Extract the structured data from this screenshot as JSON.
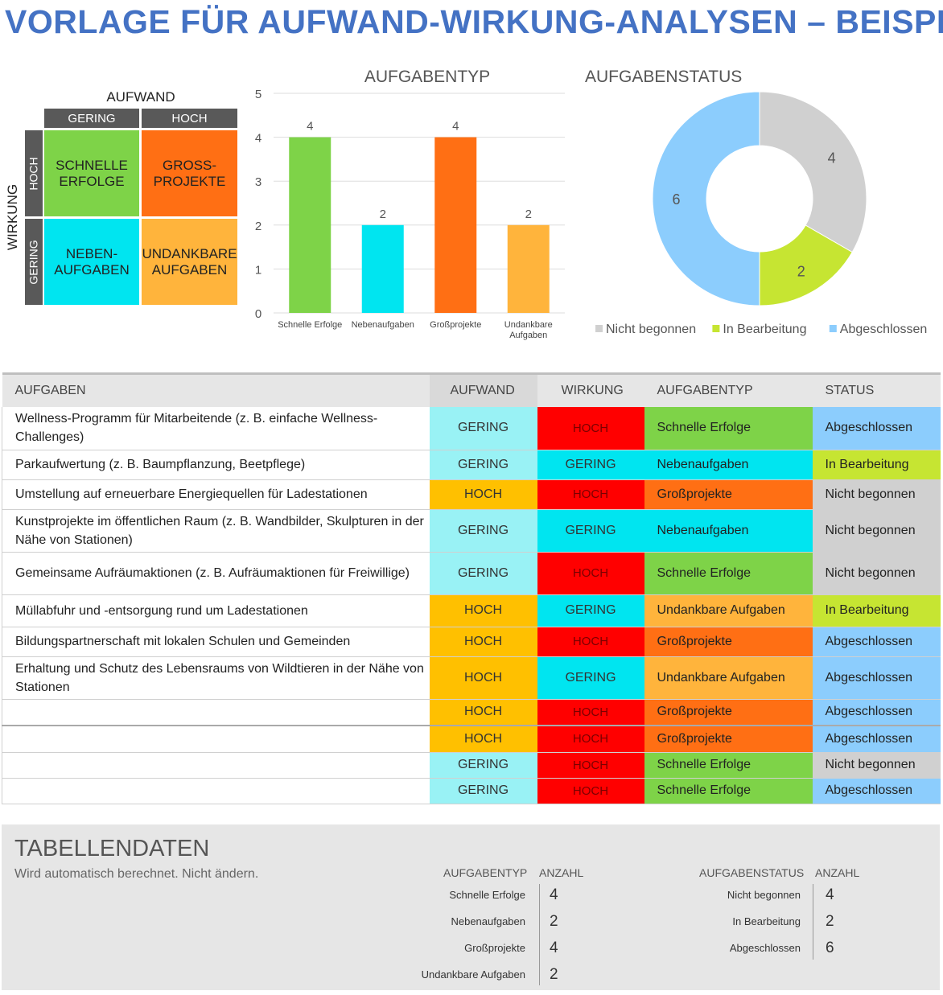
{
  "title": "VORLAGE FÜR AUFWAND-WIRKUNG-ANALYSEN – BEISPIEL",
  "matrix": {
    "x_label": "AUFWAND",
    "y_label": "WIRKUNG",
    "col_low": "GERING",
    "col_high": "HOCH",
    "row_high": "HOCH",
    "row_low": "GERING",
    "q_quick": [
      "SCHNELLE",
      "ERFOLGE"
    ],
    "q_major": [
      "GROSS-",
      "PROJEKTE"
    ],
    "q_fill": [
      "NEBEN-",
      "AUFGABEN"
    ],
    "q_thankless": [
      "UNDANKBARE",
      "AUFGABEN"
    ]
  },
  "colors": {
    "green": "#7ed348",
    "cyan": "#00e5f0",
    "light_cyan": "#99f2f5",
    "orange": "#ff6f14",
    "amber": "#ffc000",
    "light_orange": "#ffb43c",
    "red": "#ff0000",
    "gray": "#d0d0d0",
    "lime": "#c6e532",
    "blue": "#8ccdfd",
    "title": "#4472c4"
  },
  "chart_data": [
    {
      "type": "bar",
      "title": "AUFGABENTYP",
      "categories": [
        "Schnelle Erfolge",
        "Nebenaufgaben",
        "Großprojekte",
        "Undankbare Aufgaben"
      ],
      "category_lines": [
        [
          "Schnelle Erfolge"
        ],
        [
          "Nebenaufgaben"
        ],
        [
          "Großprojekte"
        ],
        [
          "Undankbare",
          "Aufgaben"
        ]
      ],
      "values": [
        4,
        2,
        4,
        2
      ],
      "colors": [
        "#7ed348",
        "#00e5f0",
        "#ff6f14",
        "#ffb43c"
      ],
      "ylim": [
        0,
        5
      ],
      "yticks": [
        0,
        1,
        2,
        3,
        4,
        5
      ],
      "grid": true
    },
    {
      "type": "pie",
      "title": "AUFGABENSTATUS",
      "labels": [
        "Nicht begonnen",
        "In Bearbeitung",
        "Abgeschlossen"
      ],
      "values": [
        4,
        2,
        6
      ],
      "colors": [
        "#d0d0d0",
        "#c6e532",
        "#8ccdfd"
      ],
      "donut": true,
      "legend": "bottom"
    }
  ],
  "table": {
    "headers": [
      "AUFGABEN",
      "AUFWAND",
      "WIRKUNG",
      "AUFGABENTYP",
      "STATUS"
    ],
    "rows": [
      {
        "task": "Wellness-Programm für Mitarbeitende (z. B. einfache Wellness-Challenges)",
        "effort": "GERING",
        "impact": "HOCH",
        "type": "Schnelle Erfolge",
        "status": "Abgeschlossen"
      },
      {
        "task": "Parkaufwertung (z. B. Baumpflanzung, Beetpflege)",
        "effort": "GERING",
        "impact": "GERING",
        "type": "Nebenaufgaben",
        "status": "In Bearbeitung"
      },
      {
        "task": "Umstellung auf erneuerbare Energiequellen für Ladestationen",
        "effort": "HOCH",
        "impact": "HOCH",
        "type": "Großprojekte",
        "status": "Nicht begonnen"
      },
      {
        "task": "Kunstprojekte im öffentlichen Raum (z. B. Wandbilder, Skulpturen in der Nähe von Stationen)",
        "effort": "GERING",
        "impact": "GERING",
        "type": "Nebenaufgaben",
        "status": "Nicht begonnen"
      },
      {
        "task": "Gemeinsame Aufräumaktionen (z. B. Aufräumaktionen für Freiwillige)",
        "effort": "GERING",
        "impact": "HOCH",
        "type": "Schnelle Erfolge",
        "status": "Nicht begonnen"
      },
      {
        "task": "Müllabfuhr und -entsorgung rund um Ladestationen",
        "effort": "HOCH",
        "impact": "GERING",
        "type": "Undankbare Aufgaben",
        "status": "In Bearbeitung"
      },
      {
        "task": "Bildungspartnerschaft mit lokalen Schulen und Gemeinden",
        "effort": "HOCH",
        "impact": "HOCH",
        "type": "Großprojekte",
        "status": "Abgeschlossen"
      },
      {
        "task": "Erhaltung und Schutz des Lebensraums von Wildtieren in der Nähe von Stationen",
        "effort": "HOCH",
        "impact": "GERING",
        "type": "Undankbare Aufgaben",
        "status": "Abgeschlossen"
      },
      {
        "task": "",
        "effort": "HOCH",
        "impact": "HOCH",
        "type": "Großprojekte",
        "status": "Abgeschlossen"
      },
      {
        "task": "",
        "effort": "HOCH",
        "impact": "HOCH",
        "type": "Großprojekte",
        "status": "Abgeschlossen"
      },
      {
        "task": "",
        "effort": "GERING",
        "impact": "HOCH",
        "type": "Schnelle Erfolge",
        "status": "Nicht begonnen"
      },
      {
        "task": "",
        "effort": "GERING",
        "impact": "HOCH",
        "type": "Schnelle Erfolge",
        "status": "Abgeschlossen"
      }
    ]
  },
  "data_section": {
    "title": "TABELLENDATEN",
    "subtitle": "Wird automatisch berechnet. Nicht ändern.",
    "type_header": "AUFGABENTYP",
    "status_header": "AUFGABENSTATUS",
    "count_header": "ANZAHL",
    "type_rows": [
      {
        "label": "Schnelle Erfolge",
        "count": "4"
      },
      {
        "label": "Nebenaufgaben",
        "count": "2"
      },
      {
        "label": "Großprojekte",
        "count": "4"
      },
      {
        "label": "Undankbare Aufgaben",
        "count": "2"
      }
    ],
    "status_rows": [
      {
        "label": "Nicht begonnen",
        "count": "4"
      },
      {
        "label": "In Bearbeitung",
        "count": "2"
      },
      {
        "label": "Abgeschlossen",
        "count": "6"
      }
    ]
  }
}
